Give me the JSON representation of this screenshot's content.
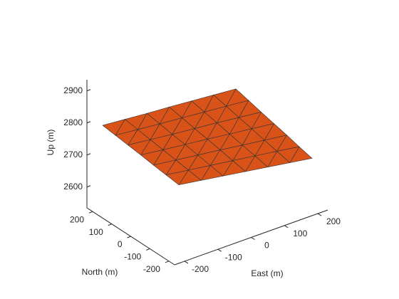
{
  "chart_data": {
    "type": "surface",
    "xlabel": "East (m)",
    "ylabel": "North (m)",
    "zlabel": "Up (m)",
    "x": [
      -200,
      -133,
      -67,
      0,
      67,
      133,
      200
    ],
    "y": [
      -200,
      -133,
      -67,
      0,
      67,
      133,
      200
    ],
    "z": [
      [
        2762,
        2751,
        2740,
        2729,
        2718,
        2707,
        2696
      ],
      [
        2767,
        2757,
        2747,
        2737,
        2727,
        2717,
        2706
      ],
      [
        2772,
        2763,
        2754,
        2745,
        2735,
        2726,
        2717
      ],
      [
        2778,
        2769,
        2761,
        2753,
        2744,
        2736,
        2727
      ],
      [
        2783,
        2775,
        2767,
        2760,
        2753,
        2745,
        2737
      ],
      [
        2788,
        2781,
        2774,
        2768,
        2761,
        2755,
        2748
      ],
      [
        2793,
        2787,
        2781,
        2776,
        2770,
        2764,
        2758
      ]
    ],
    "color": "#d95319",
    "edge_color": "#333333",
    "xlim": [
      -230,
      230
    ],
    "ylim": [
      -230,
      230
    ],
    "zlim": [
      2535,
      2935
    ],
    "xticks": [
      -200,
      -100,
      0,
      100,
      200
    ],
    "yticks": [
      -200,
      -100,
      0,
      100,
      200
    ],
    "zticks": [
      2600,
      2700,
      2800,
      2900
    ]
  }
}
